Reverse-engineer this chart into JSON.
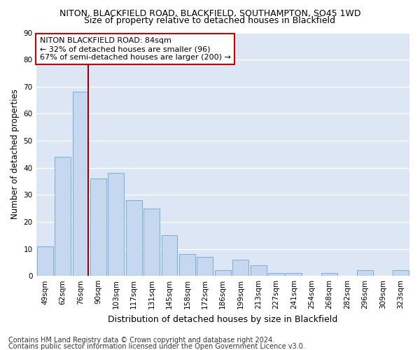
{
  "title1": "NITON, BLACKFIELD ROAD, BLACKFIELD, SOUTHAMPTON, SO45 1WD",
  "title2": "Size of property relative to detached houses in Blackfield",
  "xlabel": "Distribution of detached houses by size in Blackfield",
  "ylabel": "Number of detached properties",
  "categories": [
    "49sqm",
    "62sqm",
    "76sqm",
    "90sqm",
    "103sqm",
    "117sqm",
    "131sqm",
    "145sqm",
    "158sqm",
    "172sqm",
    "186sqm",
    "199sqm",
    "213sqm",
    "227sqm",
    "241sqm",
    "254sqm",
    "268sqm",
    "282sqm",
    "296sqm",
    "309sqm",
    "323sqm"
  ],
  "values": [
    11,
    44,
    68,
    36,
    38,
    28,
    25,
    15,
    8,
    7,
    2,
    6,
    4,
    1,
    1,
    0,
    1,
    0,
    2,
    0,
    2
  ],
  "bar_color": "#c5d8f0",
  "bar_edge_color": "#7aadd4",
  "background_color": "#dce6f5",
  "grid_color": "#ffffff",
  "vline_x_index": 2,
  "vline_color": "#990000",
  "annotation_text": "NITON BLACKFIELD ROAD: 84sqm\n← 32% of detached houses are smaller (96)\n67% of semi-detached houses are larger (200) →",
  "annotation_box_facecolor": "#ffffff",
  "annotation_box_edgecolor": "#cc0000",
  "ylim": [
    0,
    90
  ],
  "yticks": [
    0,
    10,
    20,
    30,
    40,
    50,
    60,
    70,
    80,
    90
  ],
  "footer1": "Contains HM Land Registry data © Crown copyright and database right 2024.",
  "footer2": "Contains public sector information licensed under the Open Government Licence v3.0.",
  "title1_fontsize": 9,
  "title2_fontsize": 9,
  "xlabel_fontsize": 9,
  "ylabel_fontsize": 8.5,
  "tick_fontsize": 7.5,
  "annotation_fontsize": 8,
  "footer_fontsize": 7
}
